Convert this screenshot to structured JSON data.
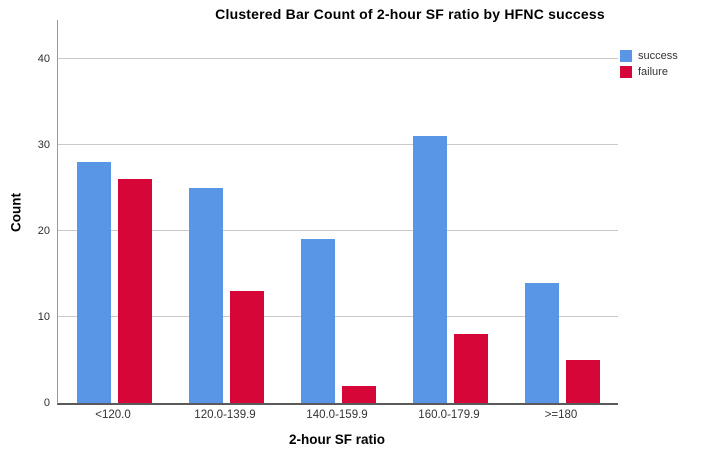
{
  "title": "Clustered Bar Count of 2-hour SF ratio by HFNC success",
  "chart_data": {
    "type": "bar",
    "title": "Clustered Bar Count of 2-hour SF ratio by HFNC success",
    "categories": [
      "<120.0",
      "120.0-139.9",
      "140.0-159.9",
      "160.0-179.9",
      ">=180"
    ],
    "series": [
      {
        "name": "success",
        "color": "#5A96E6",
        "values": [
          28,
          25,
          19,
          31,
          14
        ]
      },
      {
        "name": "failure",
        "color": "#D70638",
        "values": [
          26,
          13,
          2,
          8,
          5
        ]
      }
    ],
    "xlabel": "2-hour SF ratio",
    "ylabel": "Count",
    "ylim": [
      0,
      44.5
    ],
    "yticks": [
      0,
      10,
      20,
      30,
      40
    ],
    "grid": true,
    "gridline_color": "#c9c9c9",
    "legend_position": "top-right"
  }
}
